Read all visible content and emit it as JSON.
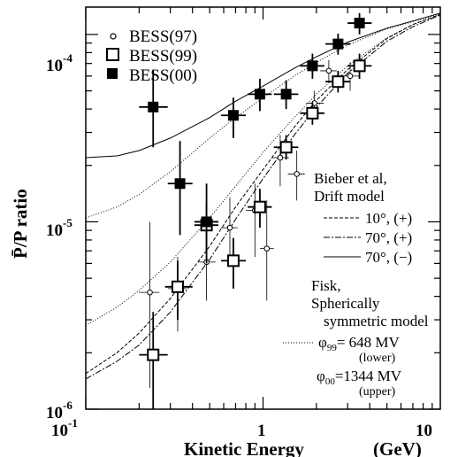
{
  "chart_data": {
    "type": "scatter",
    "xlabel": "Kinetic Energy",
    "xunit": "(GeV)",
    "ylabel": "P̄/P ratio",
    "xscale": "log",
    "yscale": "log",
    "xlim": [
      0.1,
      10
    ],
    "ylim": [
      1e-06,
      0.00014
    ],
    "x_tick_labels": [
      {
        "value": 0.1,
        "base": "10",
        "exp": "-1"
      },
      {
        "value": 1,
        "base": "1",
        "exp": ""
      },
      {
        "value": 10,
        "base": "10",
        "exp": ""
      }
    ],
    "y_tick_labels": [
      {
        "value": 1e-06,
        "base": "10",
        "exp": "-6"
      },
      {
        "value": 1e-05,
        "base": "10",
        "exp": "-5"
      },
      {
        "value": 0.0001,
        "base": "10",
        "exp": "-4"
      }
    ],
    "series": [
      {
        "name": "BESS(97)",
        "marker": "open-circle",
        "points": [
          {
            "x": 0.23,
            "y": 4.2e-06,
            "xlo": 0.2,
            "xhi": 0.26,
            "ylo": 1.3e-06,
            "yhi": 1e-05
          },
          {
            "x": 0.33,
            "y": 4.4e-06,
            "xlo": 0.29,
            "xhi": 0.37,
            "ylo": 2.6e-06,
            "yhi": 6.5e-06
          },
          {
            "x": 0.48,
            "y": 6.1e-06,
            "xlo": 0.43,
            "xhi": 0.54,
            "ylo": 3.8e-06,
            "yhi": 8.5e-06
          },
          {
            "x": 0.65,
            "y": 9.3e-06,
            "xlo": 0.58,
            "xhi": 0.72,
            "ylo": 6e-06,
            "yhi": 1.35e-05
          },
          {
            "x": 0.9,
            "y": 1.15e-05,
            "xlo": 0.8,
            "xhi": 1.0,
            "ylo": 6.5e-06,
            "yhi": 1.6e-05
          },
          {
            "x": 1.05,
            "y": 7.2e-06,
            "xlo": 0.96,
            "xhi": 1.15,
            "ylo": 3.8e-06,
            "yhi": 1.3e-05
          },
          {
            "x": 1.25,
            "y": 2.2e-05,
            "xlo": 1.12,
            "xhi": 1.4,
            "ylo": 1.55e-05,
            "yhi": 2.9e-05
          },
          {
            "x": 1.55,
            "y": 1.8e-05,
            "xlo": 1.38,
            "xhi": 1.72,
            "ylo": 1.3e-05,
            "yhi": 2.4e-05
          },
          {
            "x": 1.95,
            "y": 4.3e-05,
            "xlo": 1.75,
            "xhi": 2.2,
            "ylo": 3.6e-05,
            "yhi": 5e-05
          },
          {
            "x": 2.35,
            "y": 6.4e-05,
            "xlo": 2.1,
            "xhi": 2.6,
            "ylo": 5.6e-05,
            "yhi": 7.3e-05
          },
          {
            "x": 3.1,
            "y": 6e-05,
            "xlo": 2.75,
            "xhi": 3.5,
            "ylo": 5e-05,
            "yhi": 7.1e-05
          }
        ]
      },
      {
        "name": "BESS(99)",
        "marker": "open-square",
        "points": [
          {
            "x": 0.24,
            "y": 1.95e-06,
            "xlo": 0.2,
            "xhi": 0.29,
            "ylo": 1e-06,
            "yhi": 3.3e-06
          },
          {
            "x": 0.33,
            "y": 4.5e-06,
            "xlo": 0.28,
            "xhi": 0.4,
            "ylo": 3e-06,
            "yhi": 6.2e-06
          },
          {
            "x": 0.48,
            "y": 9.6e-06,
            "xlo": 0.41,
            "xhi": 0.56,
            "ylo": 7e-06,
            "yhi": 1.25e-05
          },
          {
            "x": 0.68,
            "y": 6.2e-06,
            "xlo": 0.58,
            "xhi": 0.8,
            "ylo": 4.4e-06,
            "yhi": 8.2e-06
          },
          {
            "x": 0.96,
            "y": 1.2e-05,
            "xlo": 0.82,
            "xhi": 1.12,
            "ylo": 9.3e-06,
            "yhi": 1.5e-05
          },
          {
            "x": 1.35,
            "y": 2.5e-05,
            "xlo": 1.15,
            "xhi": 1.58,
            "ylo": 2.15e-05,
            "yhi": 2.9e-05
          },
          {
            "x": 1.9,
            "y": 3.8e-05,
            "xlo": 1.62,
            "xhi": 2.22,
            "ylo": 3.3e-05,
            "yhi": 4.35e-05
          },
          {
            "x": 2.65,
            "y": 5.6e-05,
            "xlo": 2.25,
            "xhi": 3.1,
            "ylo": 4.9e-05,
            "yhi": 6.4e-05
          },
          {
            "x": 3.5,
            "y": 6.8e-05,
            "xlo": 3.0,
            "xhi": 4.1,
            "ylo": 5.8e-05,
            "yhi": 7.9e-05
          }
        ]
      },
      {
        "name": "BESS(00)",
        "marker": "filled-square",
        "points": [
          {
            "x": 0.24,
            "y": 4.1e-05,
            "xlo": 0.2,
            "xhi": 0.29,
            "ylo": 2.5e-05,
            "yhi": 6.5e-05
          },
          {
            "x": 0.34,
            "y": 1.6e-05,
            "xlo": 0.29,
            "xhi": 0.4,
            "ylo": 8.5e-06,
            "yhi": 2.7e-05
          },
          {
            "x": 0.48,
            "y": 1e-05,
            "xlo": 0.41,
            "xhi": 0.56,
            "ylo": 6e-06,
            "yhi": 1.6e-05
          },
          {
            "x": 0.68,
            "y": 3.7e-05,
            "xlo": 0.58,
            "xhi": 0.8,
            "ylo": 2.8e-05,
            "yhi": 4.6e-05
          },
          {
            "x": 0.96,
            "y": 4.8e-05,
            "xlo": 0.82,
            "xhi": 1.12,
            "ylo": 3.9e-05,
            "yhi": 5.8e-05
          },
          {
            "x": 1.35,
            "y": 4.8e-05,
            "xlo": 1.15,
            "xhi": 1.58,
            "ylo": 4e-05,
            "yhi": 5.7e-05
          },
          {
            "x": 1.9,
            "y": 6.8e-05,
            "xlo": 1.62,
            "xhi": 2.22,
            "ylo": 5.8e-05,
            "yhi": 7.9e-05
          },
          {
            "x": 2.65,
            "y": 8.9e-05,
            "xlo": 2.25,
            "xhi": 3.1,
            "ylo": 7.8e-05,
            "yhi": 0.000101
          },
          {
            "x": 3.5,
            "y": 0.000115,
            "xlo": 3.0,
            "xhi": 4.1,
            "ylo": 0.0001,
            "yhi": 0.00013
          }
        ]
      }
    ],
    "curves": [
      {
        "name": "10°, (+)",
        "style": "dashed",
        "x": [
          0.1,
          0.15,
          0.2,
          0.3,
          0.5,
          0.7,
          1,
          1.5,
          2,
          3,
          5,
          7,
          10
        ],
        "y": [
          1.55e-06,
          2e-06,
          2.55e-06,
          3.9e-06,
          7.4e-06,
          1.2e-05,
          1.9e-05,
          3.2e-05,
          4.45e-05,
          6.5e-05,
          9.5e-05,
          0.000113,
          0.000128
        ]
      },
      {
        "name": "70°, (+)",
        "style": "dashdot",
        "x": [
          0.1,
          0.15,
          0.2,
          0.3,
          0.5,
          0.7,
          1,
          1.5,
          2,
          3,
          5,
          7,
          10
        ],
        "y": [
          1.45e-06,
          1.8e-06,
          2.2e-06,
          3.3e-06,
          6.3e-06,
          1.03e-05,
          1.7e-05,
          2.9e-05,
          4.1e-05,
          6.2e-05,
          9.2e-05,
          0.00011,
          0.000127
        ]
      },
      {
        "name": "70°, (−)",
        "style": "solid",
        "x": [
          0.1,
          0.15,
          0.2,
          0.3,
          0.5,
          0.7,
          1,
          1.5,
          2,
          3,
          5,
          7,
          10
        ],
        "y": [
          2.2e-05,
          2.25e-05,
          2.4e-05,
          2.8e-05,
          3.6e-05,
          4.4e-05,
          5.3e-05,
          6.6e-05,
          7.6e-05,
          9.1e-05,
          0.000108,
          0.000118,
          0.00013
        ]
      },
      {
        "name": "φ99= 648 MV (lower)",
        "style": "dotted",
        "x": [
          0.1,
          0.15,
          0.2,
          0.3,
          0.5,
          0.7,
          1,
          1.5,
          2,
          3,
          5,
          7,
          10
        ],
        "y": [
          2.8e-06,
          3.5e-06,
          4.3e-06,
          6.1e-06,
          1.05e-05,
          1.55e-05,
          2.35e-05,
          3.6e-05,
          4.8e-05,
          6.8e-05,
          9.6e-05,
          0.000113,
          0.000128
        ]
      },
      {
        "name": "φ00=1344 MV (upper)",
        "style": "dotted",
        "x": [
          0.1,
          0.15,
          0.2,
          0.3,
          0.5,
          0.7,
          1,
          1.5,
          2,
          3,
          5,
          7,
          10
        ],
        "y": [
          1.05e-05,
          1.2e-05,
          1.4e-05,
          1.85e-05,
          2.8e-05,
          3.6e-05,
          4.6e-05,
          6e-05,
          7.1e-05,
          8.8e-05,
          0.000107,
          0.000117,
          0.000129
        ]
      }
    ],
    "annotations": {
      "bieber_line1": "Bieber et al,",
      "bieber_line2": "Drift model",
      "fisk_line1": "Fisk,",
      "fisk_line2": "Spherically",
      "fisk_line3": "symmetric model",
      "phi99_sub": "99",
      "phi99_value": "=  648 MV",
      "phi99_note": "(lower)",
      "phi00_sub": "00",
      "phi00_value": "=1344 MV",
      "phi00_note": "(upper)"
    },
    "legend_position": "top-left",
    "grid": false
  }
}
